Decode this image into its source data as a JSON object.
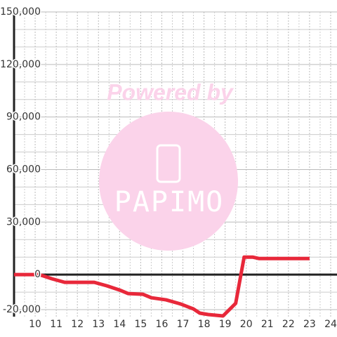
{
  "chart_data": {
    "type": "line",
    "x": [
      9,
      10.2,
      10.8,
      11.4,
      12.8,
      13.4,
      14,
      14.4,
      15.1,
      15.5,
      16.2,
      16.9,
      17.5,
      17.8,
      18.2,
      18.9,
      19.5,
      19.9,
      20.3,
      20.6,
      23
    ],
    "series": [
      {
        "color": "#e8283a",
        "values": [
          0,
          0,
          -2400,
          -4400,
          -4400,
          -6400,
          -8800,
          -10800,
          -11200,
          -13200,
          -14400,
          -16800,
          -19600,
          -22000,
          -22800,
          -23600,
          -16400,
          10000,
          10000,
          9200,
          9200
        ]
      }
    ],
    "xlim": [
      9,
      24.3
    ],
    "xticks": [
      10,
      11,
      12,
      13,
      14,
      15,
      16,
      17,
      18,
      19,
      20,
      21,
      22,
      23,
      24
    ],
    "x_minor_ticks": [
      9.5,
      10.5,
      11.5,
      12.5,
      13.5,
      14.5,
      15.5,
      16.5,
      17.5,
      18.5,
      19.5,
      20.5,
      21.5,
      22.5,
      23.5
    ],
    "ylim": [
      -24000,
      150000
    ],
    "yticks": [
      {
        "value": -20000,
        "label": "-20,000"
      },
      0,
      {
        "value": 30000,
        "label": "30,000"
      },
      {
        "value": 60000,
        "label": "60,000"
      },
      {
        "value": 90000,
        "label": "90,000"
      },
      {
        "value": 120000,
        "label": "120,000"
      },
      {
        "value": 150000,
        "label": "150,000"
      }
    ],
    "y_minor_ticks": [
      -10000,
      10000,
      20000,
      40000,
      50000,
      70000,
      80000,
      100000,
      110000,
      130000,
      140000
    ],
    "grid": true
  },
  "watermark": {
    "text": "Powered by",
    "logo": "PAPIMO"
  }
}
